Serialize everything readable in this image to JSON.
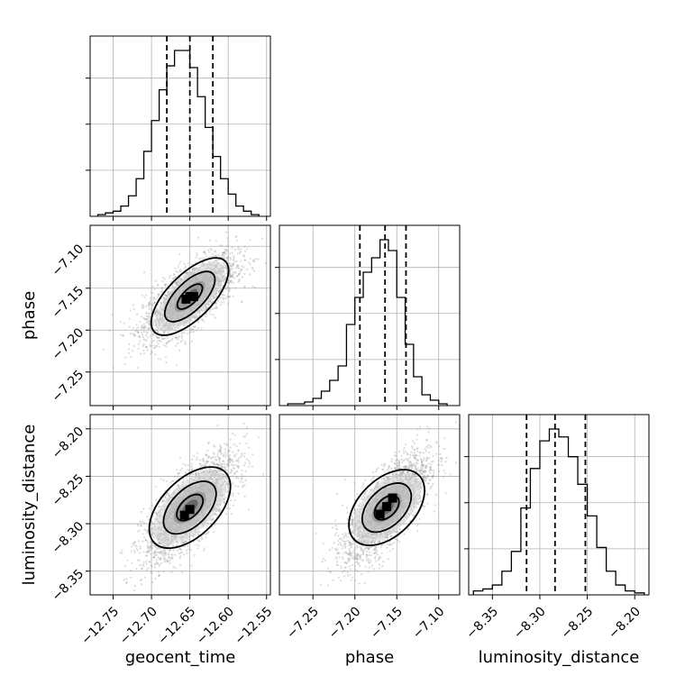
{
  "chart_data": [
    {
      "type": "histogram",
      "panel": "geocent_time",
      "x_range": [
        -12.78,
        -12.545
      ],
      "x_ticks": [
        -12.75,
        -12.7,
        -12.65,
        -12.6,
        -12.55
      ],
      "x_tick_labels": [
        "-12.75",
        "-12.70",
        "-12.65",
        "-12.60",
        "-12.55"
      ],
      "xlabel": "geocent_time",
      "bin_edges": [
        -12.77,
        -12.76,
        -12.75,
        -12.74,
        -12.73,
        -12.72,
        -12.71,
        -12.7,
        -12.69,
        -12.68,
        -12.67,
        -12.66,
        -12.65,
        -12.64,
        -12.63,
        -12.62,
        -12.61,
        -12.6,
        -12.59,
        -12.58,
        -12.57,
        -12.56
      ],
      "counts": [
        1,
        2,
        3,
        6,
        12,
        22,
        38,
        56,
        74,
        88,
        97,
        97,
        87,
        70,
        52,
        35,
        22,
        13,
        6,
        3,
        1
      ],
      "quantiles": [
        -12.68,
        -12.65,
        -12.62
      ],
      "grid": true
    },
    {
      "type": "histogram",
      "panel": "phase",
      "x_range": [
        -7.29,
        -7.075
      ],
      "x_ticks": [
        -7.25,
        -7.2,
        -7.15,
        -7.1
      ],
      "x_tick_labels": [
        "-7.25",
        "-7.20",
        "-7.15",
        "-7.10"
      ],
      "xlabel": "phase",
      "bin_edges": [
        -7.28,
        -7.27,
        -7.26,
        -7.25,
        -7.24,
        -7.23,
        -7.22,
        -7.21,
        -7.2,
        -7.19,
        -7.18,
        -7.17,
        -7.16,
        -7.15,
        -7.14,
        -7.13,
        -7.12,
        -7.11,
        -7.1,
        -7.09
      ],
      "counts": [
        1,
        1,
        2,
        4,
        8,
        14,
        22,
        45,
        60,
        74,
        82,
        92,
        86,
        60,
        34,
        16,
        6,
        3,
        1
      ],
      "quantiles": [
        -7.194,
        -7.164,
        -7.139
      ],
      "grid": true
    },
    {
      "type": "histogram",
      "panel": "luminosity_distance",
      "x_range": [
        -8.375,
        -8.185
      ],
      "x_ticks": [
        -8.35,
        -8.3,
        -8.25,
        -8.2
      ],
      "x_tick_labels": [
        "-8.35",
        "-8.30",
        "-8.25",
        "-8.20"
      ],
      "xlabel": "luminosity_distance",
      "bin_edges": [
        -8.37,
        -8.36,
        -8.35,
        -8.34,
        -8.33,
        -8.32,
        -8.31,
        -8.3,
        -8.29,
        -8.28,
        -8.27,
        -8.26,
        -8.25,
        -8.24,
        -8.23,
        -8.22,
        -8.21,
        -8.2,
        -8.19
      ],
      "counts": [
        2,
        3,
        5,
        12,
        22,
        44,
        64,
        78,
        84,
        80,
        70,
        56,
        40,
        24,
        12,
        5,
        2,
        1
      ],
      "quantiles": [
        -8.314,
        -8.284,
        -8.252
      ],
      "grid": true
    },
    {
      "type": "scatter",
      "panel": "phase vs geocent_time",
      "x_range": [
        -12.78,
        -12.545
      ],
      "y_range": [
        -7.29,
        -7.075
      ],
      "y_ticks": [
        -7.25,
        -7.2,
        -7.15,
        -7.1
      ],
      "y_tick_labels": [
        "-7.25",
        "-7.20",
        "-7.15",
        "-7.10"
      ],
      "ylabel": "phase",
      "center": [
        -12.65,
        -7.16
      ],
      "sigma": [
        0.03,
        0.025
      ],
      "correlation": 0.7,
      "points": 2500,
      "contours": 3,
      "peak_pixels": [
        [
          -12.65,
          -7.16
        ],
        [
          -12.645,
          -7.16
        ],
        [
          -12.655,
          -7.163
        ]
      ]
    },
    {
      "type": "scatter",
      "panel": "luminosity_distance vs geocent_time",
      "x_range": [
        -12.78,
        -12.545
      ],
      "y_range": [
        -8.375,
        -8.185
      ],
      "y_ticks": [
        -8.35,
        -8.3,
        -8.25,
        -8.2
      ],
      "y_tick_labels": [
        "-8.35",
        "-8.30",
        "-8.25",
        "-8.20"
      ],
      "ylabel": "luminosity_distance",
      "center": [
        -12.65,
        -8.283
      ],
      "sigma": [
        0.03,
        0.028
      ],
      "correlation": 0.75,
      "points": 2500,
      "contours": 3,
      "peak_pixels": [
        [
          -12.657,
          -8.291
        ],
        [
          -12.65,
          -8.285
        ]
      ]
    },
    {
      "type": "scatter",
      "panel": "luminosity_distance vs phase",
      "x_range": [
        -7.29,
        -7.075
      ],
      "y_range": [
        -8.375,
        -8.185
      ],
      "center": [
        -7.162,
        -8.283
      ],
      "sigma": [
        0.025,
        0.028
      ],
      "correlation": 0.72,
      "points": 2500,
      "contours": 3,
      "peak_pixels": [
        [
          -7.17,
          -8.29
        ],
        [
          -7.155,
          -8.273
        ],
        [
          -7.162,
          -8.282
        ]
      ]
    }
  ]
}
